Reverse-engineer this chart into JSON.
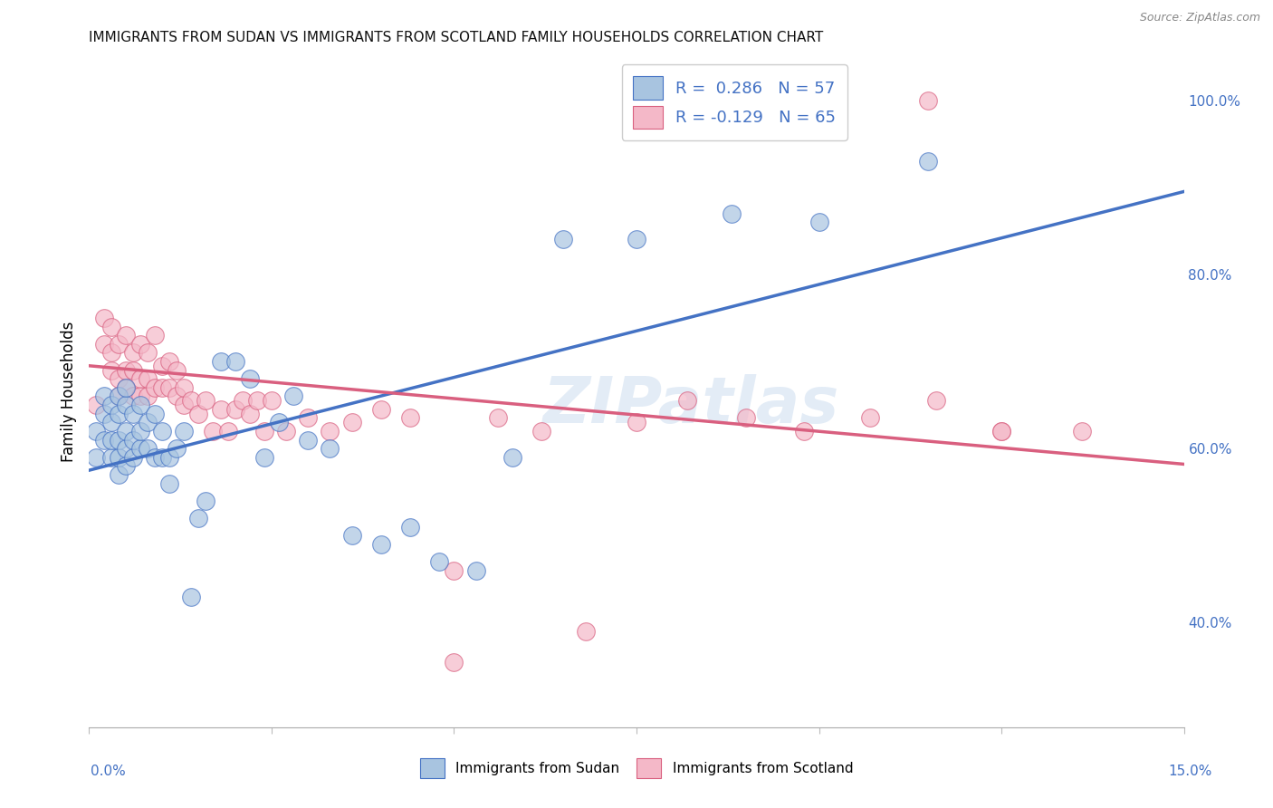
{
  "title": "IMMIGRANTS FROM SUDAN VS IMMIGRANTS FROM SCOTLAND FAMILY HOUSEHOLDS CORRELATION CHART",
  "source": "Source: ZipAtlas.com",
  "ylabel": "Family Households",
  "sudan_color": "#a8c4e0",
  "scotland_color": "#f4b8c8",
  "sudan_line_color": "#4472c4",
  "scotland_line_color": "#d95f7f",
  "text_color": "#4472c4",
  "watermark": "ZIPatlas",
  "sudan_x": [
    0.001,
    0.001,
    0.002,
    0.002,
    0.002,
    0.003,
    0.003,
    0.003,
    0.003,
    0.004,
    0.004,
    0.004,
    0.004,
    0.004,
    0.005,
    0.005,
    0.005,
    0.005,
    0.005,
    0.006,
    0.006,
    0.006,
    0.007,
    0.007,
    0.007,
    0.008,
    0.008,
    0.009,
    0.009,
    0.01,
    0.01,
    0.011,
    0.011,
    0.012,
    0.013,
    0.014,
    0.015,
    0.016,
    0.018,
    0.02,
    0.022,
    0.024,
    0.026,
    0.028,
    0.03,
    0.033,
    0.036,
    0.04,
    0.044,
    0.048,
    0.053,
    0.058,
    0.065,
    0.075,
    0.088,
    0.1,
    0.115
  ],
  "sudan_y": [
    0.62,
    0.59,
    0.61,
    0.64,
    0.66,
    0.59,
    0.61,
    0.63,
    0.65,
    0.57,
    0.59,
    0.61,
    0.64,
    0.66,
    0.58,
    0.6,
    0.62,
    0.65,
    0.67,
    0.59,
    0.61,
    0.64,
    0.6,
    0.62,
    0.65,
    0.6,
    0.63,
    0.59,
    0.64,
    0.59,
    0.62,
    0.56,
    0.59,
    0.6,
    0.62,
    0.43,
    0.52,
    0.54,
    0.7,
    0.7,
    0.68,
    0.59,
    0.63,
    0.66,
    0.61,
    0.6,
    0.5,
    0.49,
    0.51,
    0.47,
    0.46,
    0.59,
    0.84,
    0.84,
    0.87,
    0.86,
    0.93
  ],
  "scotland_x": [
    0.001,
    0.002,
    0.002,
    0.003,
    0.003,
    0.003,
    0.004,
    0.004,
    0.004,
    0.005,
    0.005,
    0.005,
    0.006,
    0.006,
    0.006,
    0.007,
    0.007,
    0.007,
    0.008,
    0.008,
    0.008,
    0.009,
    0.009,
    0.01,
    0.01,
    0.011,
    0.011,
    0.012,
    0.012,
    0.013,
    0.013,
    0.014,
    0.015,
    0.016,
    0.017,
    0.018,
    0.019,
    0.02,
    0.021,
    0.022,
    0.023,
    0.024,
    0.025,
    0.027,
    0.03,
    0.033,
    0.036,
    0.04,
    0.044,
    0.05,
    0.056,
    0.062,
    0.068,
    0.075,
    0.082,
    0.09,
    0.098,
    0.107,
    0.116,
    0.125,
    0.136,
    0.09,
    0.115,
    0.05,
    0.125
  ],
  "scotland_y": [
    0.65,
    0.72,
    0.75,
    0.69,
    0.71,
    0.74,
    0.66,
    0.68,
    0.72,
    0.67,
    0.69,
    0.73,
    0.66,
    0.69,
    0.71,
    0.66,
    0.68,
    0.72,
    0.66,
    0.68,
    0.71,
    0.67,
    0.73,
    0.67,
    0.695,
    0.67,
    0.7,
    0.66,
    0.69,
    0.65,
    0.67,
    0.655,
    0.64,
    0.655,
    0.62,
    0.645,
    0.62,
    0.645,
    0.655,
    0.64,
    0.655,
    0.62,
    0.655,
    0.62,
    0.635,
    0.62,
    0.63,
    0.645,
    0.635,
    0.46,
    0.635,
    0.62,
    0.39,
    0.63,
    0.655,
    0.635,
    0.62,
    0.635,
    0.655,
    0.62,
    0.62,
    1.0,
    1.0,
    0.355,
    0.62
  ],
  "xlim": [
    0.0,
    0.15
  ],
  "ylim": [
    0.28,
    1.05
  ],
  "sudan_trend": [
    0.575,
    0.895
  ],
  "scotland_trend": [
    0.695,
    0.582
  ],
  "yticks": [
    0.4,
    0.6,
    0.8,
    1.0
  ],
  "ytick_labels": [
    "40.0%",
    "60.0%",
    "80.0%",
    "100.0%"
  ]
}
